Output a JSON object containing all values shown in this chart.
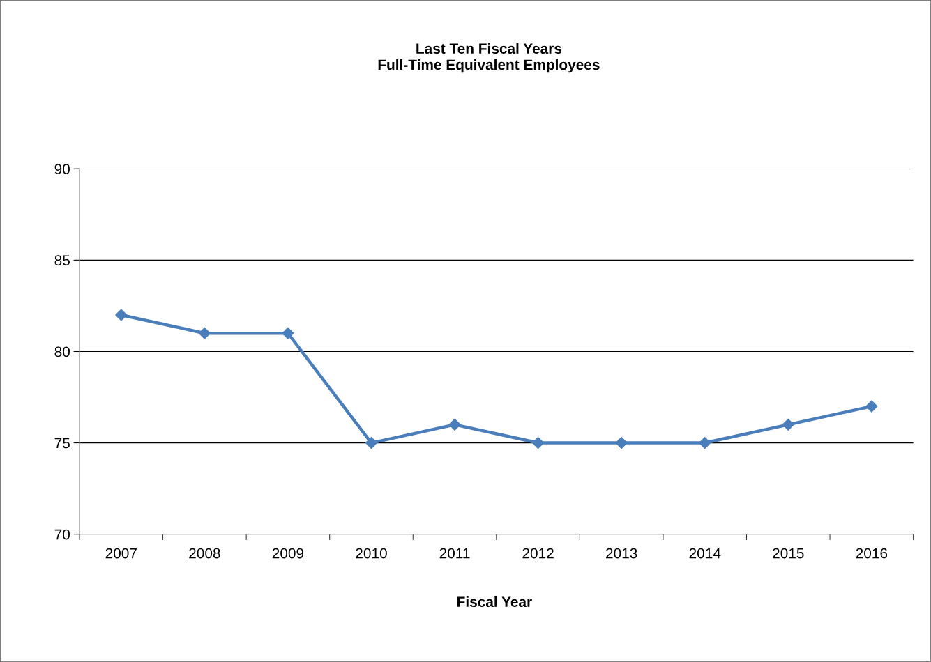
{
  "chart_data": {
    "type": "line",
    "title": "Last Ten Fiscal Years\nFull-Time Equivalent Employees",
    "xlabel": "Fiscal Year",
    "categories": [
      "2007",
      "2008",
      "2009",
      "2010",
      "2011",
      "2012",
      "2013",
      "2014",
      "2015",
      "2016"
    ],
    "series": [
      {
        "color": "#4a7ebb",
        "values": [
          82,
          81,
          81,
          75,
          76,
          75,
          75,
          75,
          76,
          77
        ]
      }
    ],
    "ylim": [
      70,
      90
    ],
    "yticks": [
      70,
      75,
      80,
      85,
      90
    ],
    "grid": "y",
    "marker": "diamond",
    "line_style": "solid"
  }
}
